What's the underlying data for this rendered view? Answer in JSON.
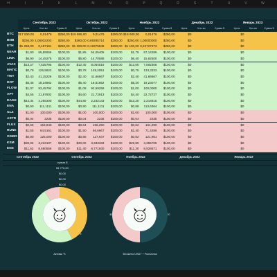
{
  "columns": [
    "H",
    "I",
    "J",
    "K",
    "L",
    "M",
    "N",
    "O",
    "P",
    "Q",
    "R",
    "S",
    "T",
    "U",
    "V",
    "W"
  ],
  "months": [
    "Сентябрь 2022",
    "Октябрь 2022",
    "Ноябрь 2022",
    "Декабрь 2022",
    "Январь 2023"
  ],
  "subheaders": [
    "Цена",
    "Кол-во",
    "Сумма $"
  ],
  "colors": {
    "gold": "#f5c24a",
    "green": "#cdf4c8",
    "pink": "#f4c9c9",
    "header": "#0e2a30",
    "sheet": "#123238"
  },
  "rows": [
    {
      "t": "BTC",
      "g": "gold",
      "a": [
        "$17 000,00",
        "0,01476",
        "$250,00"
      ],
      "b": [
        "$16 855,00",
        "0,01476",
        "$250,00"
      ],
      "c": [
        "$16 600,00",
        "0,01476",
        "$250,00"
      ],
      "d": [
        "$0",
        ""
      ],
      "e": [
        "$0",
        ""
      ]
    },
    {
      "t": "BNB",
      "g": "gold",
      "a": [
        "$236,00",
        "1,05932203",
        "$250,00"
      ],
      "b": [
        "$280,00",
        "0,89285714",
        "$250,00"
      ],
      "c": [
        "$250,00",
        "1,00000000",
        "$250,00"
      ],
      "d": [
        "$0",
        ""
      ],
      "e": [
        "$0",
        ""
      ]
    },
    {
      "t": "ETH",
      "g": "gold",
      "a": [
        "$1 268,00",
        "0,197161",
        "$250,00"
      ],
      "b": [
        "$1 290,00",
        "0,19379845",
        "$250,00"
      ],
      "c": [
        "$1 100,00",
        "0,22727273",
        "$250,00"
      ],
      "d": [
        "$0",
        ""
      ],
      "e": [
        "$0",
        ""
      ]
    },
    {
      "t": "NEAR",
      "g": "green",
      "a": [
        "$1,80",
        "55,55556",
        "$100,00"
      ],
      "b": [
        "$1,85",
        "54,05405",
        "$100,00"
      ],
      "c": [
        "$1,75",
        "57,14286",
        "$100,00"
      ],
      "d": [
        "$0",
        ""
      ],
      "e": [
        "$0",
        ""
      ]
    },
    {
      "t": "LINK",
      "g": "green",
      "a": [
        "$6,90",
        "14,49275",
        "$100,00"
      ],
      "b": [
        "$6,80",
        "14,70588",
        "$100,00"
      ],
      "c": [
        "$6,40",
        "15,62500",
        "$100,00"
      ],
      "d": [
        "$0",
        ""
      ],
      "e": [
        "$0",
        ""
      ]
    },
    {
      "t": "AVAX",
      "g": "green",
      "a": [
        "$13,27",
        "7,535795",
        "$100,00"
      ],
      "b": [
        "$12,40",
        "8,064516",
        "$100,00"
      ],
      "c": [
        "$13,00",
        "7,692308",
        "$100,00"
      ],
      "d": [
        "$0",
        ""
      ],
      "e": [
        "$0",
        ""
      ]
    },
    {
      "t": "MATIC",
      "g": "green",
      "a": [
        "$0,79",
        "126,5823",
        "$100,00"
      ],
      "b": [
        "$0,78",
        "128,2051",
        "$100,00"
      ],
      "c": [
        "$0,75",
        "133,3333",
        "$100,00"
      ],
      "d": [
        "$0",
        ""
      ],
      "e": [
        "$0",
        ""
      ]
    },
    {
      "t": "TWT",
      "g": "green",
      "a": [
        "$2,43",
        "41,15226",
        "$100,00"
      ],
      "b": [
        "$2,40",
        "41,66667",
        "$100,00"
      ],
      "c": [
        "$2,40",
        "41,66667",
        "$100,00"
      ],
      "d": [
        "$0",
        ""
      ],
      "e": [
        "$0",
        ""
      ]
    },
    {
      "t": "DOT",
      "g": "green",
      "a": [
        "$5,45",
        "18,34862",
        "$100,00"
      ],
      "b": [
        "$5,40",
        "18,51852",
        "$100,00"
      ],
      "c": [
        "$5,20",
        "19,23077",
        "$100,00"
      ],
      "d": [
        "$0",
        ""
      ],
      "e": [
        "$0",
        ""
      ]
    },
    {
      "t": "FLOW",
      "g": "green",
      "a": [
        "$1,07",
        "93,45794",
        "$100,00"
      ],
      "b": [
        "$1,08",
        "92,59259",
        "$100,00"
      ],
      "c": [
        "$1,00",
        "100,0000",
        "$100,00"
      ],
      "d": [
        "$0",
        ""
      ],
      "e": [
        "$0",
        ""
      ]
    },
    {
      "t": "APT",
      "g": "green",
      "a": [
        "$4,55",
        "21,97802",
        "$100,00"
      ],
      "b": [
        "$4,60",
        "21,73913",
        "$100,00"
      ],
      "c": [
        "$4,40",
        "22,72727",
        "$100,00"
      ],
      "d": [
        "$0",
        ""
      ],
      "e": [
        "$0",
        ""
      ]
    },
    {
      "t": "DASH",
      "g": "green",
      "a": [
        "$44,34",
        "2,255300",
        "$100,00"
      ],
      "b": [
        "$44,80",
        "2,232143",
        "$100,00"
      ],
      "c": [
        "$43,20",
        "2,314815",
        "$100,00"
      ],
      "d": [
        "$0",
        ""
      ],
      "e": [
        "$0",
        ""
      ]
    },
    {
      "t": "ENA",
      "g": "green",
      "a": [
        "$0,90",
        "111,1111",
        "$100,00"
      ],
      "b": [
        "$0,90",
        "111,1111",
        "$100,00"
      ],
      "c": [
        "$0,88",
        "113,6364",
        "$100,00"
      ],
      "d": [
        "$0",
        ""
      ],
      "e": [
        "$0",
        ""
      ]
    },
    {
      "t": "GLZ",
      "g": "pink",
      "a": [
        "$1,00",
        "100,000",
        "$100,00"
      ],
      "b": [
        "$1,00",
        "100,000",
        "$100,00"
      ],
      "c": [
        "$1,00",
        "100,000",
        "$100,00"
      ],
      "d": [
        "$0",
        ""
      ],
      "e": [
        "$0",
        ""
      ]
    },
    {
      "t": "ASTR",
      "g": "pink",
      "a": [
        "$0,04",
        "2235",
        "$100,00"
      ],
      "b": [
        "$0,04",
        "2235",
        "$100,00"
      ],
      "c": [
        "$0,04",
        "2235",
        "$100,00"
      ],
      "d": [
        "$0",
        ""
      ],
      "e": [
        "$0",
        ""
      ]
    },
    {
      "t": "FLUX",
      "g": "pink",
      "a": [
        "$0,65",
        "153,846",
        "$100,00"
      ],
      "b": [
        "$0,64",
        "156,250",
        "$100,00"
      ],
      "c": [
        "$0,62",
        "161,290",
        "$100,00"
      ],
      "d": [
        "$0",
        ""
      ],
      "e": [
        "$0",
        ""
      ]
    },
    {
      "t": "RUNE",
      "g": "pink",
      "a": [
        "$1,55",
        "64,5161",
        "$100,00"
      ],
      "b": [
        "$1,50",
        "66,6667",
        "$100,00"
      ],
      "c": [
        "$1,40",
        "71,4286",
        "$100,00"
      ],
      "d": [
        "$0",
        ""
      ],
      "e": [
        "$0",
        ""
      ]
    },
    {
      "t": "OSMO",
      "g": "pink",
      "a": [
        "$0,80",
        "125,000",
        "$100,00"
      ],
      "b": [
        "$0,85",
        "117,647",
        "$100,00"
      ],
      "c": [
        "$0,82",
        "121,951",
        "$100,00"
      ],
      "d": [
        "$0",
        ""
      ],
      "e": [
        "$0",
        ""
      ]
    },
    {
      "t": "KSM",
      "g": "pink",
      "a": [
        "$30,93",
        "3,233107",
        "$100,00"
      ],
      "b": [
        "$30,00",
        "3,333333",
        "$100,00"
      ],
      "c": [
        "$29,80",
        "3,355705",
        "$100,00"
      ],
      "d": [
        "$0",
        ""
      ],
      "e": [
        "$0",
        ""
      ]
    },
    {
      "t": "ENS",
      "g": "pink",
      "a": [
        "$11,52",
        "8,680556",
        "$100,00"
      ],
      "b": [
        "$11,40",
        "8,771930",
        "$100,00"
      ],
      "c": [
        "$11,20",
        "8,928571",
        "$100,00"
      ],
      "d": [
        "$0",
        ""
      ],
      "e": [
        "$0",
        ""
      ]
    }
  ],
  "lower": {
    "months": [
      "Сентябрь 2022",
      "Октябрь 2022",
      "Ноябрь 2022",
      "Декабрь 2022",
      "Январь 2023"
    ],
    "sum_label": "сумма $",
    "values": [
      "$1 770,00",
      "$0,00",
      "$0,00",
      "$0,00"
    ],
    "chart_data": [
      {
        "type": "pie",
        "title": "Активы %",
        "slices": [
          {
            "name": "gold",
            "value": 42.4,
            "label": "42,4%"
          },
          {
            "name": "green",
            "value": 48.5,
            "label": "48,5%"
          },
          {
            "name": "pink",
            "value": 9.1,
            "label": "9,1%"
          }
        ]
      },
      {
        "type": "pie",
        "title": "Вложено USDT + Рыночная",
        "slices": [
          {
            "name": "teal",
            "value": 50,
            "label": "$17 000,00"
          },
          {
            "name": "pink",
            "value": 50,
            "label": "$17 000,00"
          }
        ]
      }
    ]
  }
}
